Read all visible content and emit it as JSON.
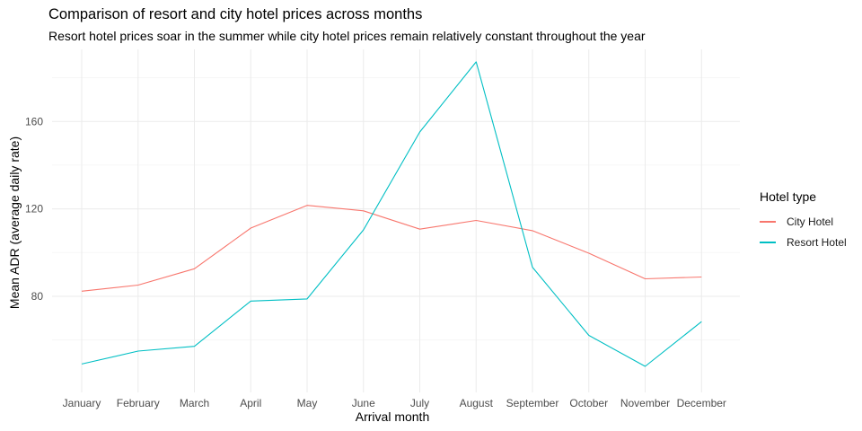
{
  "chart_data": {
    "type": "line",
    "title": "Comparison of resort and city hotel prices across months",
    "subtitle": "Resort hotel prices soar in the summer while city hotel prices remain relatively constant throughout the year",
    "xlabel": "Arrival month",
    "ylabel": "Mean ADR (average daily rate)",
    "categories": [
      "January",
      "February",
      "March",
      "April",
      "May",
      "June",
      "July",
      "August",
      "September",
      "October",
      "November",
      "December"
    ],
    "y_ticks": [
      80,
      120,
      160
    ],
    "ylim": [
      36,
      193
    ],
    "grid": true,
    "legend": {
      "title": "Hotel type",
      "position": "right"
    },
    "series": [
      {
        "name": "City Hotel",
        "color": "#F8766D",
        "values": [
          82.3,
          85.1,
          92.6,
          111.2,
          121.6,
          119.1,
          110.7,
          114.7,
          110.0,
          99.7,
          88.0,
          88.8
        ]
      },
      {
        "name": "Resort Hotel",
        "color": "#00BFC4",
        "values": [
          49.0,
          54.9,
          57.1,
          77.8,
          78.8,
          110.4,
          155.2,
          187.3,
          93.3,
          62.1,
          47.9,
          68.4
        ]
      }
    ]
  }
}
